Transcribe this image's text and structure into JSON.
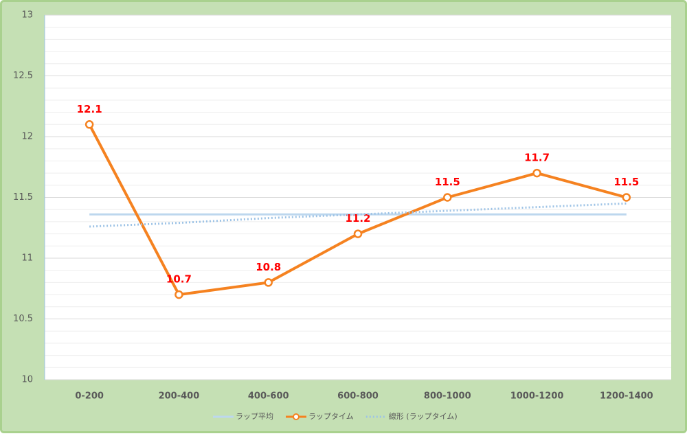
{
  "chart_data": {
    "type": "line",
    "categories": [
      "0-200",
      "200-400",
      "400-600",
      "600-800",
      "800-1000",
      "1000-1200",
      "1200-1400"
    ],
    "series": [
      {
        "name": "ラップ平均",
        "color": "#bdd7ee",
        "style": "solid",
        "markers": false,
        "values": [
          11.36,
          11.36,
          11.36,
          11.36,
          11.36,
          11.36,
          11.36
        ]
      },
      {
        "name": "ラップタイム",
        "color": "#f58220",
        "style": "solid",
        "markers": true,
        "label_color": "#ff0000",
        "values": [
          12.1,
          10.7,
          10.8,
          11.2,
          11.5,
          11.7,
          11.5
        ]
      },
      {
        "name": "線形 (ラップタイム)",
        "color": "#9dc3e6",
        "style": "dotted",
        "markers": false,
        "values": [
          11.26,
          11.29,
          11.33,
          11.36,
          11.39,
          11.42,
          11.45
        ]
      }
    ],
    "ylim": [
      10,
      13
    ],
    "yticks": [
      10,
      10.5,
      11,
      11.5,
      12,
      12.5,
      13
    ],
    "minor_yticks": [
      10.1,
      10.2,
      10.3,
      10.4,
      10.6,
      10.7,
      10.8,
      10.9,
      11.1,
      11.2,
      11.3,
      11.4,
      11.6,
      11.7,
      11.8,
      11.9,
      12.1,
      12.2,
      12.3,
      12.4,
      12.6,
      12.7,
      12.8,
      12.9
    ],
    "grid": true,
    "legend": "bottom"
  }
}
